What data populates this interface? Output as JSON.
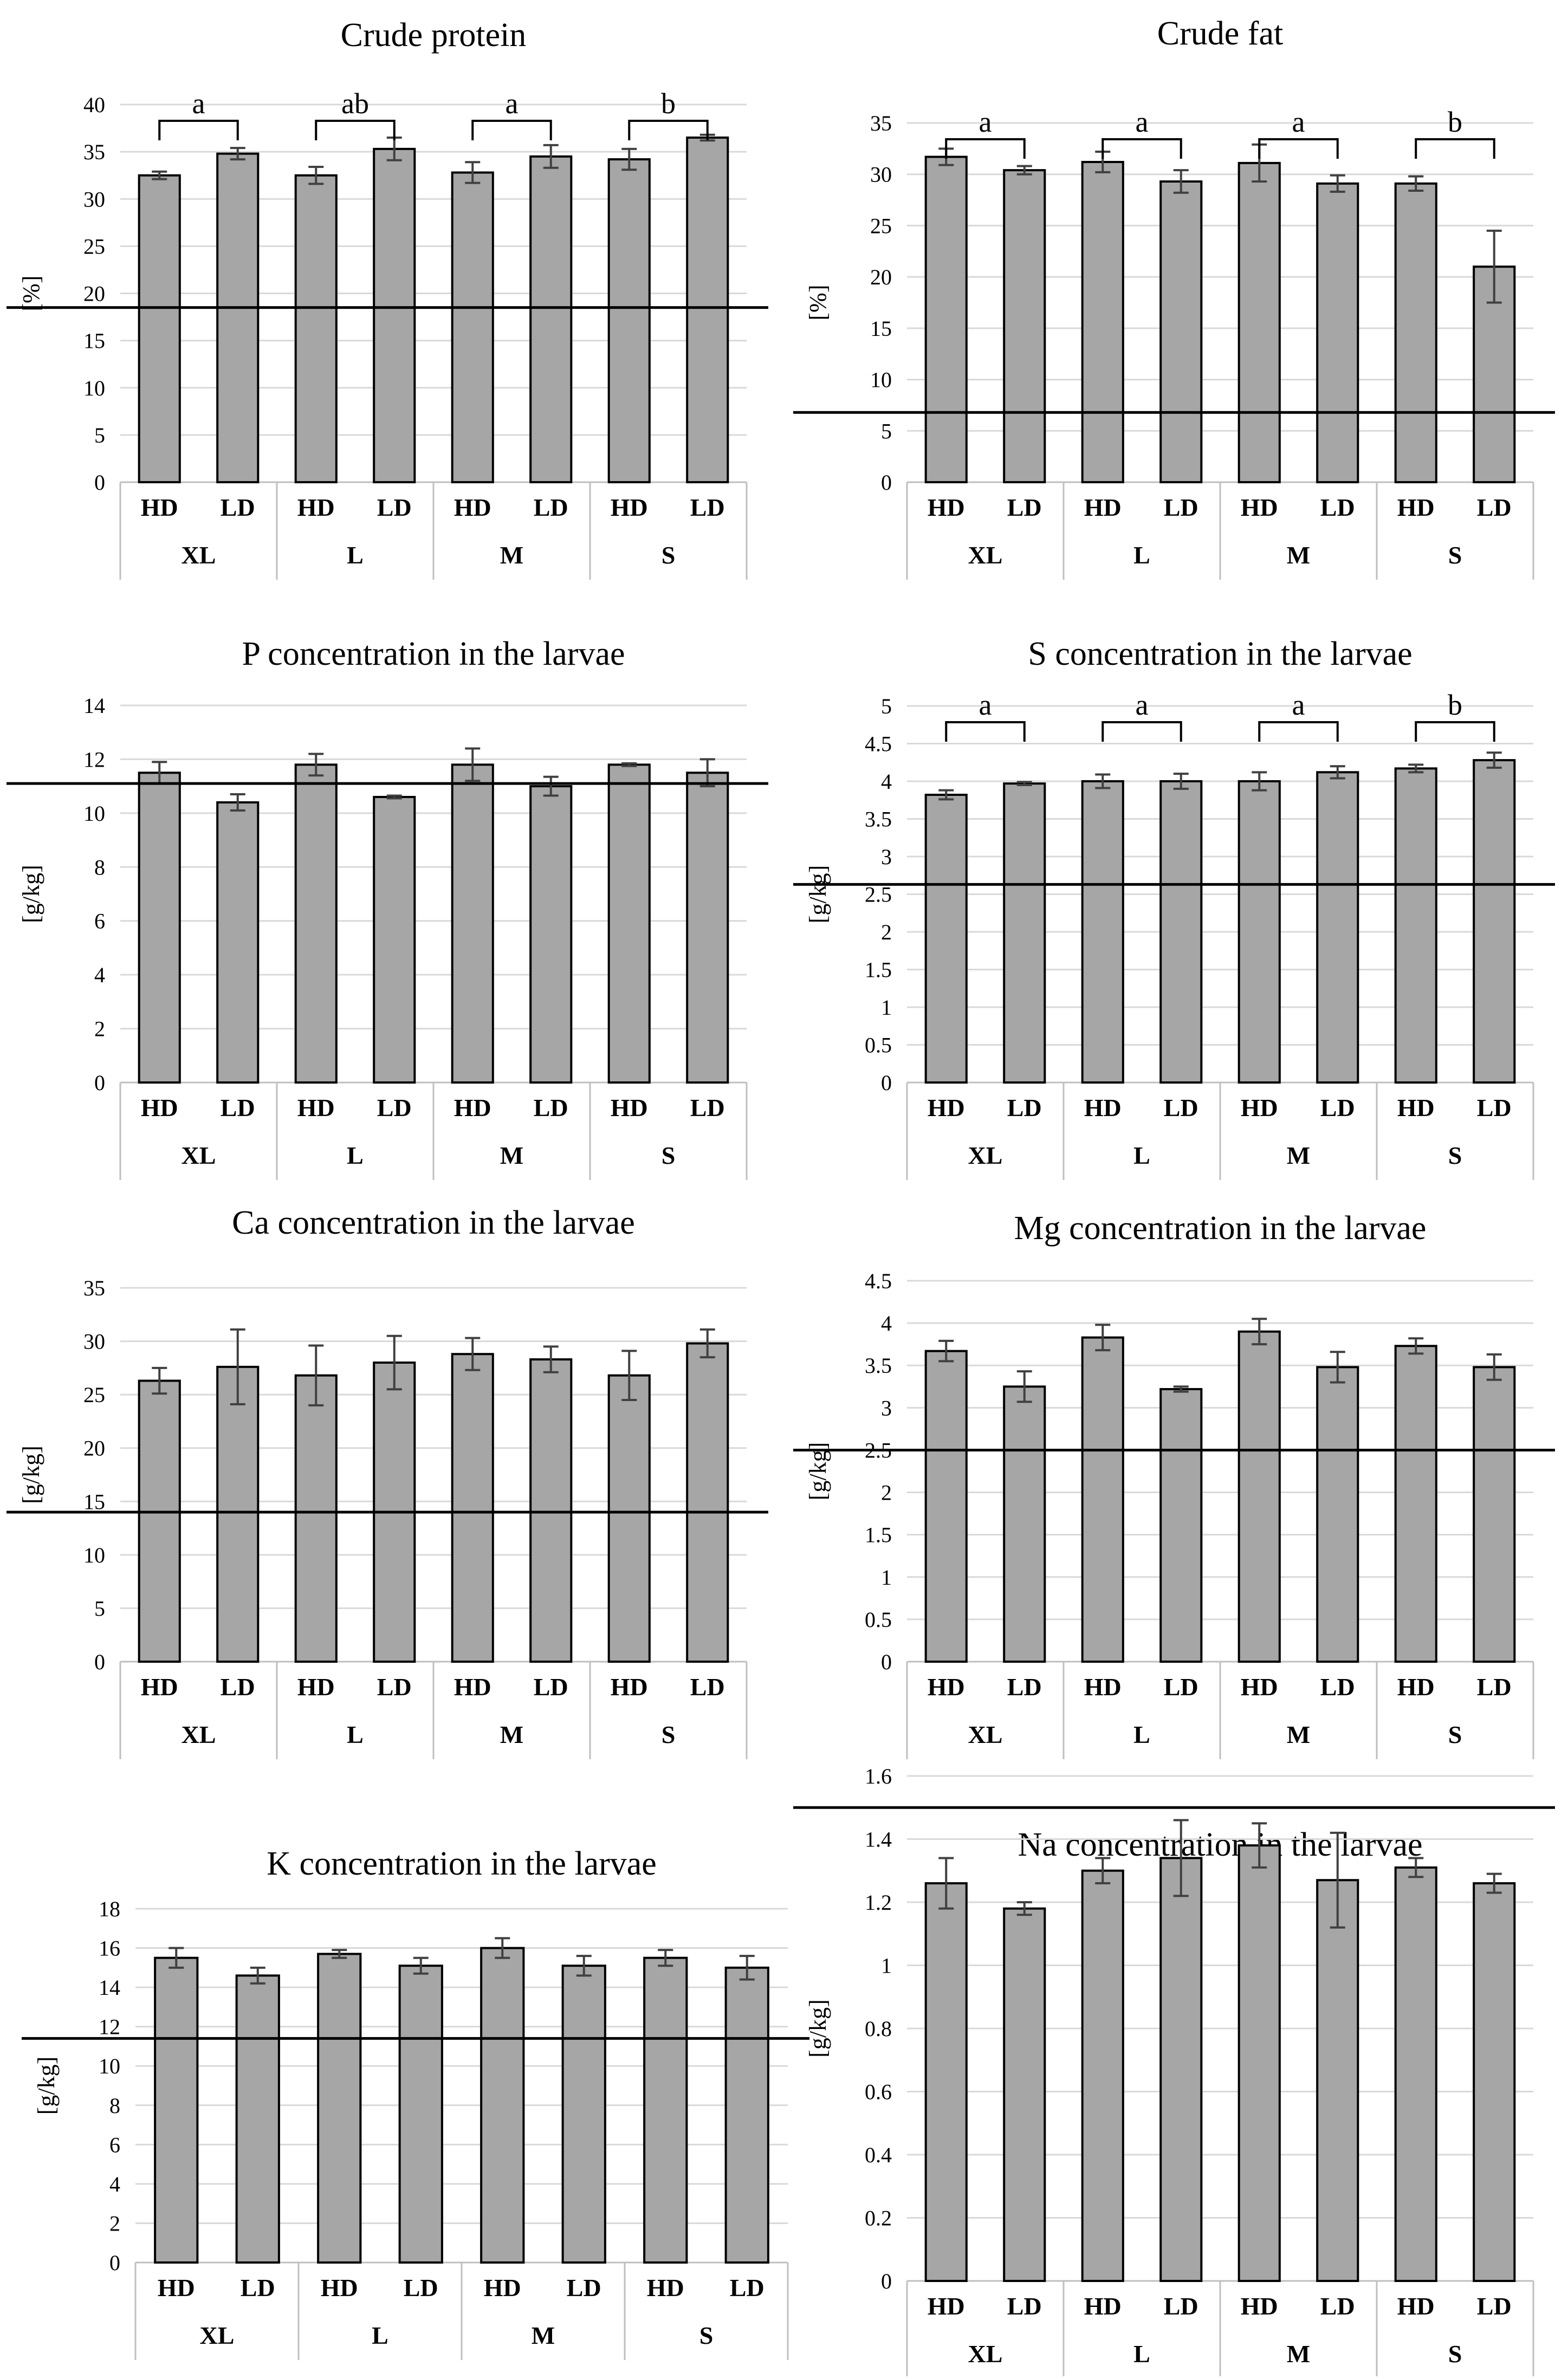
{
  "style": {
    "bar_color": "#a6a6a6",
    "bar_stroke": "#000000",
    "grid_color": "#d9d9d9",
    "axis_color": "#bfbfbf",
    "line_color": "#000000"
  },
  "chart_data": [
    {
      "type": "bar",
      "title": "Crude protein",
      "ylabel": "[%]",
      "ylim": [
        0,
        40
      ],
      "ytick_step": 5,
      "ytick_labels": [
        "0",
        "5",
        "10",
        "15",
        "20",
        "25",
        "30",
        "35",
        "40"
      ],
      "groups": [
        "XL",
        "L",
        "M",
        "S"
      ],
      "categories": [
        "HD",
        "LD",
        "HD",
        "LD",
        "HD",
        "LD",
        "HD",
        "LD"
      ],
      "values": [
        32.5,
        34.8,
        32.5,
        35.3,
        32.8,
        34.5,
        34.2,
        36.5
      ],
      "errors": [
        0.4,
        0.6,
        0.9,
        1.2,
        1.1,
        1.2,
        1.1,
        0.3
      ],
      "reference_line": 18.5,
      "significance": [
        "a",
        "ab",
        "a",
        "b"
      ]
    },
    {
      "type": "bar",
      "title": "Crude fat",
      "ylabel": "[%]",
      "ylim": [
        0,
        35
      ],
      "ytick_step": 5,
      "ytick_labels": [
        "0",
        "5",
        "10",
        "15",
        "20",
        "25",
        "30",
        "35"
      ],
      "groups": [
        "XL",
        "L",
        "M",
        "S"
      ],
      "categories": [
        "HD",
        "LD",
        "HD",
        "LD",
        "HD",
        "LD",
        "HD",
        "LD"
      ],
      "values": [
        31.7,
        30.4,
        31.2,
        29.3,
        31.1,
        29.1,
        29.1,
        21.0
      ],
      "errors": [
        0.8,
        0.4,
        1.0,
        1.1,
        1.8,
        0.8,
        0.7,
        3.5
      ],
      "reference_line": 6.8,
      "significance": [
        "a",
        "a",
        "a",
        "b"
      ]
    },
    {
      "type": "bar",
      "title": "P concentration in the larvae",
      "ylabel": "[g/kg]",
      "ylim": [
        0,
        14
      ],
      "ytick_step": 2,
      "ytick_labels": [
        "0",
        "2",
        "4",
        "6",
        "8",
        "10",
        "12",
        "14"
      ],
      "groups": [
        "XL",
        "L",
        "M",
        "S"
      ],
      "categories": [
        "HD",
        "LD",
        "HD",
        "LD",
        "HD",
        "LD",
        "HD",
        "LD"
      ],
      "values": [
        11.5,
        10.4,
        11.8,
        10.6,
        11.8,
        11.0,
        11.8,
        11.5
      ],
      "errors": [
        0.4,
        0.3,
        0.4,
        0.05,
        0.6,
        0.35,
        0.05,
        0.5
      ],
      "reference_line": 11.1,
      "significance": []
    },
    {
      "type": "bar",
      "title": "S concentration in the larvae",
      "ylabel": "[g/kg]",
      "ylim": [
        0,
        5
      ],
      "ytick_step": 0.5,
      "ytick_labels": [
        "0",
        "0.5",
        "1",
        "1.5",
        "2",
        "2.5",
        "3",
        "3.5",
        "4",
        "4.5",
        "5"
      ],
      "groups": [
        "XL",
        "L",
        "M",
        "S"
      ],
      "categories": [
        "HD",
        "LD",
        "HD",
        "LD",
        "HD",
        "LD",
        "HD",
        "LD"
      ],
      "values": [
        3.82,
        3.97,
        4.0,
        4.0,
        4.0,
        4.12,
        4.17,
        4.28
      ],
      "errors": [
        0.06,
        0.02,
        0.09,
        0.1,
        0.12,
        0.08,
        0.05,
        0.1
      ],
      "reference_line": 2.63,
      "significance": [
        "a",
        "a",
        "a",
        "b"
      ]
    },
    {
      "type": "bar",
      "title": "Ca concentration in the larvae",
      "ylabel": "[g/kg]",
      "ylim": [
        0,
        35
      ],
      "ytick_step": 5,
      "ytick_labels": [
        "0",
        "5",
        "10",
        "15",
        "20",
        "25",
        "30",
        "35"
      ],
      "groups": [
        "XL",
        "L",
        "M",
        "S"
      ],
      "categories": [
        "HD",
        "LD",
        "HD",
        "LD",
        "HD",
        "LD",
        "HD",
        "LD"
      ],
      "values": [
        26.3,
        27.6,
        26.8,
        28.0,
        28.8,
        28.3,
        26.8,
        29.8
      ],
      "errors": [
        1.2,
        3.5,
        2.8,
        2.5,
        1.5,
        1.2,
        2.3,
        1.3
      ],
      "reference_line": 14.0,
      "significance": []
    },
    {
      "type": "bar",
      "title": "Mg concentration in the larvae",
      "ylabel": "[g/kg]",
      "ylim": [
        0,
        4.5
      ],
      "ytick_step": 0.5,
      "ytick_labels": [
        "0",
        "0.5",
        "1",
        "1.5",
        "2",
        "2.5",
        "3",
        "3.5",
        "4",
        "4.5"
      ],
      "groups": [
        "XL",
        "L",
        "M",
        "S"
      ],
      "categories": [
        "HD",
        "LD",
        "HD",
        "LD",
        "HD",
        "LD",
        "HD",
        "LD"
      ],
      "values": [
        3.67,
        3.25,
        3.83,
        3.22,
        3.9,
        3.48,
        3.73,
        3.48
      ],
      "errors": [
        0.12,
        0.18,
        0.15,
        0.03,
        0.15,
        0.18,
        0.09,
        0.15
      ],
      "reference_line": 2.5,
      "significance": []
    },
    {
      "type": "bar",
      "title": "K concentration in the larvae",
      "ylabel": "[g/kg]",
      "ylim": [
        0,
        18
      ],
      "ytick_step": 2,
      "ytick_labels": [
        "0",
        "2",
        "4",
        "6",
        "8",
        "10",
        "12",
        "14",
        "16",
        "18"
      ],
      "groups": [
        "XL",
        "L",
        "M",
        "S"
      ],
      "categories": [
        "HD",
        "LD",
        "HD",
        "LD",
        "HD",
        "LD",
        "HD",
        "LD"
      ],
      "values": [
        15.5,
        14.6,
        15.7,
        15.1,
        16.0,
        15.1,
        15.5,
        15.0
      ],
      "errors": [
        0.5,
        0.4,
        0.2,
        0.4,
        0.5,
        0.5,
        0.4,
        0.6
      ],
      "reference_line": 11.4,
      "significance": []
    },
    {
      "type": "bar",
      "title": "Na concentration in the larvae",
      "ylabel": "[g/kg]",
      "ylim": [
        0,
        1.6
      ],
      "ytick_step": 0.2,
      "ytick_labels": [
        "0",
        "0.2",
        "0.4",
        "0.6",
        "0.8",
        "1",
        "1.2",
        "1.4",
        "1.6"
      ],
      "groups": [
        "XL",
        "L",
        "M",
        "S"
      ],
      "categories": [
        "HD",
        "LD",
        "HD",
        "LD",
        "HD",
        "LD",
        "HD",
        "LD"
      ],
      "values": [
        1.26,
        1.18,
        1.3,
        1.34,
        1.38,
        1.27,
        1.31,
        1.26
      ],
      "errors": [
        0.08,
        0.02,
        0.04,
        0.12,
        0.07,
        0.15,
        0.03,
        0.03
      ],
      "reference_line": 1.5,
      "significance": []
    }
  ]
}
